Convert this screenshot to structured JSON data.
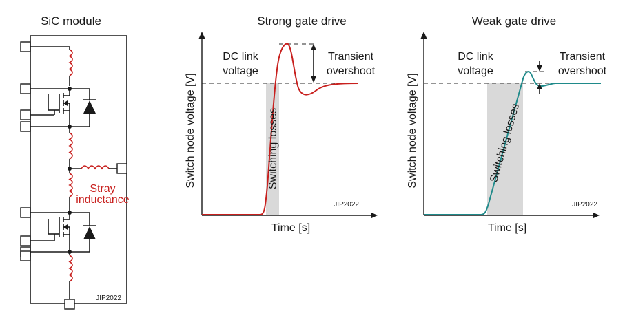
{
  "panels": {
    "module": {
      "title": "SiC module",
      "stray_label_line1": "Stray",
      "stray_label_line2": "inductance",
      "watermark": "JIP2022",
      "colors": {
        "inductor": "#c8201e",
        "wire": "#1a1a1a"
      }
    },
    "strong": {
      "title": "Strong gate drive",
      "ylabel": "Switch node voltage [V]",
      "xlabel": "Time [s]",
      "dc_link_line1": "DC link",
      "dc_link_line2": "voltage",
      "transient_line1": "Transient",
      "transient_line2": "overshoot",
      "switching_label": "Switching losses",
      "watermark": "JIP2022",
      "curve_color": "#c8201e"
    },
    "weak": {
      "title": "Weak gate drive",
      "ylabel": "Switch node voltage [V]",
      "xlabel": "Time [s]",
      "dc_link_line1": "DC link",
      "dc_link_line2": "voltage",
      "transient_line1": "Transient",
      "transient_line2": "overshoot",
      "switching_label": "Switching losses",
      "watermark": "JIP2022",
      "curve_color": "#1f8a8a"
    }
  },
  "colors": {
    "switching_band": "#d9d9d9",
    "dashed_line": "#555555"
  }
}
